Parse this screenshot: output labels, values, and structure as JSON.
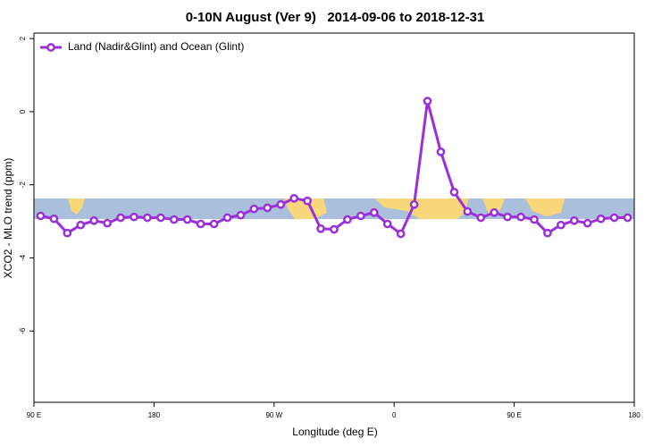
{
  "chart_data": {
    "type": "line",
    "title": "0-10N August (Ver 9)   2014-09-06 to 2018-12-31",
    "xlabel": "Longitude (deg E)",
    "ylabel": "XCO2 - MLO trend (ppm)",
    "x": [
      95,
      105,
      115,
      125,
      135,
      145,
      155,
      165,
      175,
      185,
      195,
      205,
      215,
      225,
      235,
      245,
      255,
      265,
      275,
      285,
      295,
      305,
      315,
      325,
      335,
      345,
      355,
      365,
      375,
      385,
      395,
      405,
      415,
      425,
      435,
      445,
      455,
      465,
      475,
      485,
      495,
      505,
      515,
      525,
      535
    ],
    "series": [
      {
        "name": "Land (Nadir&Glint) and Ocean (Glint)",
        "color": "#9b30d9",
        "values": [
          -2.85,
          -2.93,
          -3.32,
          -3.1,
          -2.98,
          -3.05,
          -2.9,
          -2.88,
          -2.9,
          -2.9,
          -2.95,
          -2.95,
          -3.07,
          -3.07,
          -2.9,
          -2.83,
          -2.66,
          -2.63,
          -2.54,
          -2.37,
          -2.44,
          -3.2,
          -3.22,
          -2.95,
          -2.85,
          -2.76,
          -3.07,
          -3.34,
          -2.54,
          0.29,
          -1.1,
          -2.2,
          -2.73,
          -2.9,
          -2.76,
          -2.88,
          -2.88,
          -2.95,
          -3.32,
          -3.1,
          -2.98,
          -3.05,
          -2.93,
          -2.9,
          -2.9
        ]
      }
    ],
    "xlim": [
      90,
      540
    ],
    "xticks": [
      {
        "value": 90,
        "label": "90 E"
      },
      180,
      {
        "value": 270,
        "label": "90 W"
      },
      {
        "value": 360,
        "label": "0"
      },
      {
        "value": 450,
        "label": "90 E"
      },
      {
        "value": 540,
        "label": "180"
      }
    ],
    "ylim": [
      -7.95,
      2.15
    ],
    "yticks": [
      2,
      0,
      -2,
      -4,
      -6
    ],
    "legend": "top-left"
  }
}
